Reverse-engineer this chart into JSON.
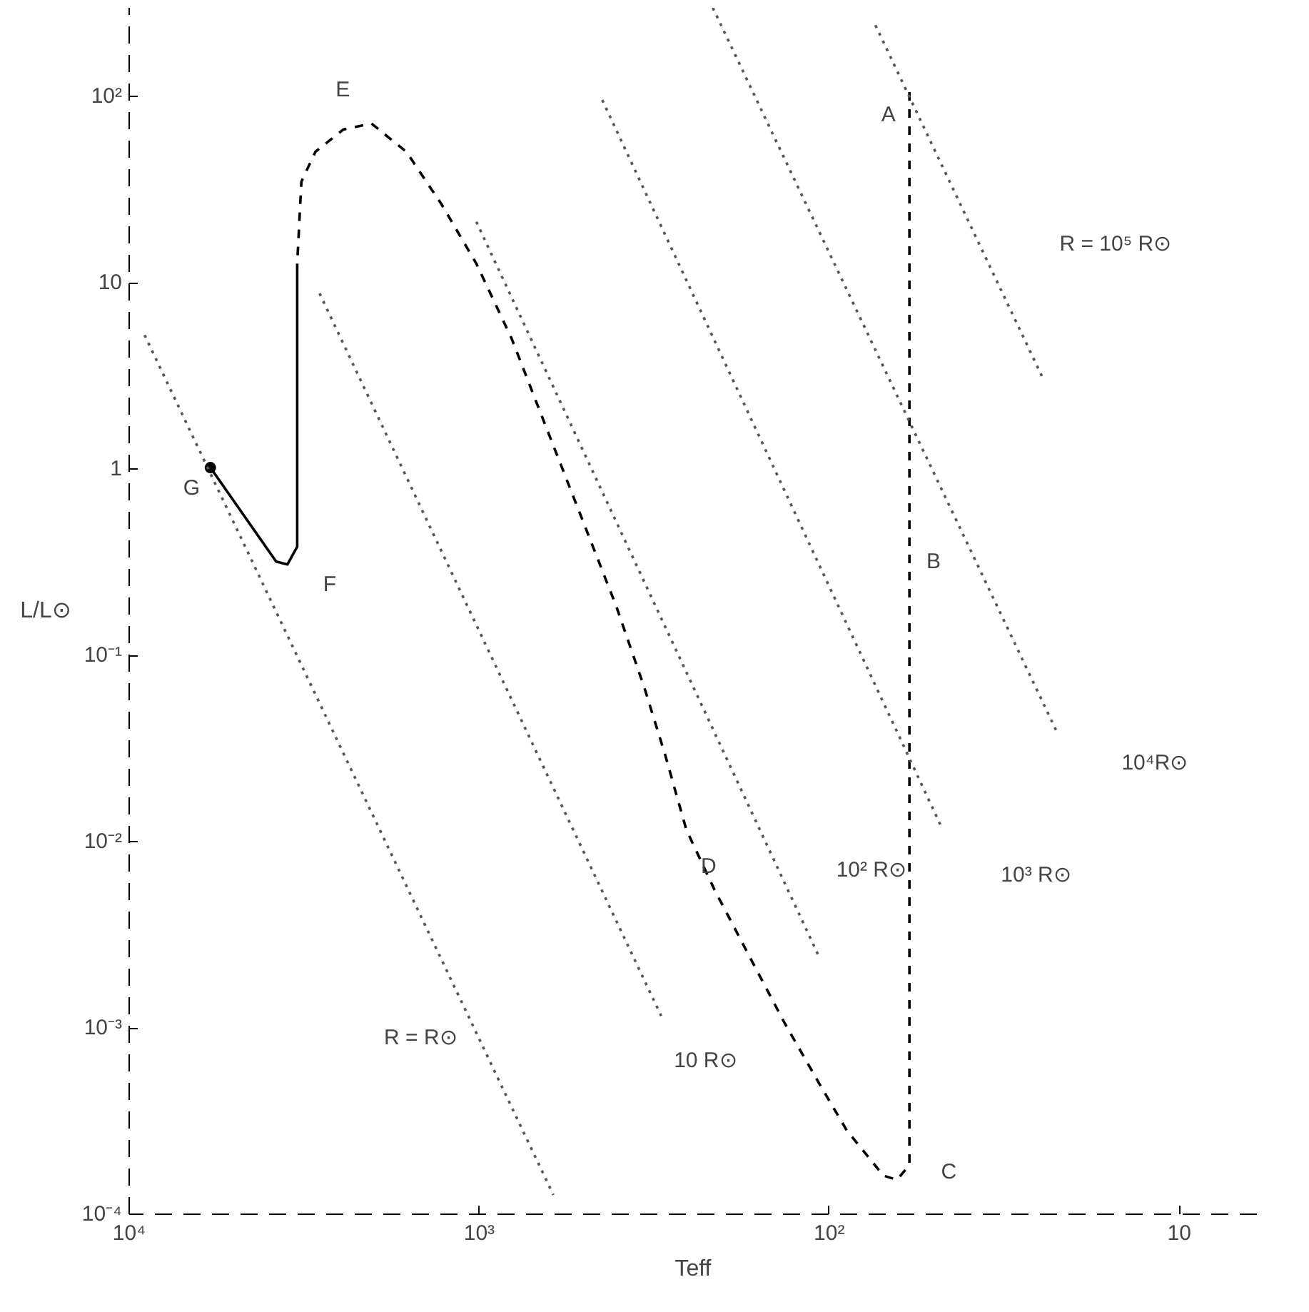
{
  "chart_data": {
    "type": "line",
    "xlabel": "Teff",
    "ylabel": "L/L⊙",
    "log": "xy",
    "xlim": [
      10000,
      6
    ],
    "ylim": [
      0.0001,
      300
    ],
    "xticks": [
      {
        "value": 10000,
        "label": "10⁴"
      },
      {
        "value": 1000,
        "label": "10³"
      },
      {
        "value": 100,
        "label": "10²"
      },
      {
        "value": 10,
        "label": "10"
      }
    ],
    "yticks": [
      {
        "value": 0.0001,
        "label": "10⁻⁴"
      },
      {
        "value": 0.001,
        "label": "10⁻³"
      },
      {
        "value": 0.01,
        "label": "10⁻²"
      },
      {
        "value": 0.1,
        "label": "10⁻¹"
      },
      1,
      10,
      {
        "value": 100,
        "label": "10²"
      }
    ],
    "series": [
      {
        "line_style": "dashed",
        "color": "#000000",
        "x": [
          59,
          59,
          64,
          70,
          77,
          89,
          107,
          134,
          169,
          213,
          256,
          294,
          337,
          406,
          511,
          643,
          809,
          1019,
          1282,
          1614,
          2032,
          2443,
          2938,
          3221,
          3311
        ],
        "values": [
          106,
          0.000184,
          0.000153,
          0.000161,
          0.000201,
          0.000281,
          0.000506,
          0.00106,
          0.00242,
          0.00555,
          0.0116,
          0.0291,
          0.0667,
          0.184,
          0.555,
          1.67,
          5.06,
          12.7,
          26.5,
          50.6,
          71.8,
          66.7,
          50.6,
          35.0,
          12.7
        ]
      },
      {
        "line_style": "solid",
        "color": "#000000",
        "x": [
          3311,
          3311,
          3532,
          3802,
          5861
        ],
        "values": [
          12.7,
          0.384,
          0.308,
          0.319,
          1.02
        ]
      },
      {
        "type": "scatter",
        "marker": "circle",
        "color": "#000000",
        "x": [
          5861
        ],
        "values": [
          1.02
        ]
      },
      {
        "line_style": "dotted",
        "color": "#555555",
        "x": [
          9036,
          614
        ],
        "values": [
          5.25,
          0.000127
        ]
      },
      {
        "line_style": "dotted",
        "color": "#555555",
        "x": [
          2858,
          302
        ],
        "values": [
          8.79,
          0.00116
        ]
      },
      {
        "line_style": "dotted",
        "color": "#555555",
        "x": [
          1019,
          107
        ],
        "values": [
          21.3,
          0.00242
        ]
      },
      {
        "line_style": "dotted",
        "color": "#555555",
        "x": [
          445,
          47.4
        ],
        "values": [
          96,
          0.0116
        ]
      },
      {
        "line_style": "dotted",
        "color": "#555555",
        "x": [
          215,
          22.3
        ],
        "values": [
          300,
          0.0384
        ]
      },
      {
        "line_style": "dotted",
        "color": "#555555",
        "x": [
          73.8,
          24.4
        ],
        "values": [
          242,
          3.02
        ]
      }
    ],
    "annotations": [
      "A",
      "B",
      "C",
      "D",
      "E",
      "F",
      "G",
      "R = 10⁵ R⊙",
      "10⁴R⊙",
      "10³ R⊙",
      "10² R⊙",
      "10 R⊙",
      "R = R⊙"
    ]
  }
}
